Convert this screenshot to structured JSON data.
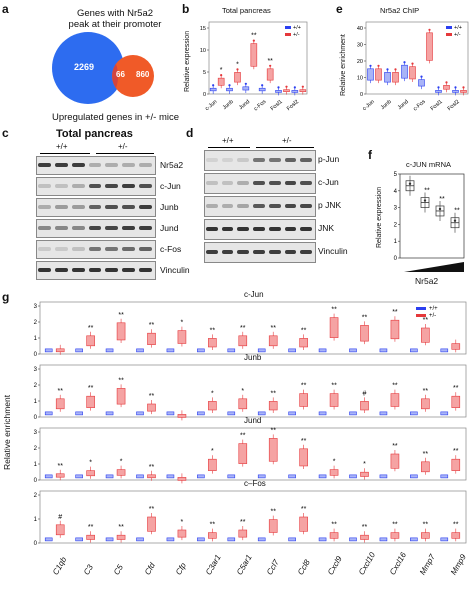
{
  "panel_a": {
    "letter": "a",
    "title": "Genes with Nr5a2\npeak at their promoter",
    "big": "2269",
    "overlap": "66",
    "small": "860",
    "footer": "Upregulated genes in +/- mice",
    "colors": {
      "blue": "#2d6cf0",
      "orange": "#f05a28"
    }
  },
  "panel_b": {
    "letter": "b",
    "title": "Total pancreas",
    "ylabel": "Relative expression",
    "legend": [
      "+/+",
      "+/-"
    ],
    "categories": [
      "c-Jun",
      "Junb",
      "Jund",
      "c-Fos",
      "Fosl1",
      "Fosl2"
    ],
    "yticks": [
      "0",
      "5",
      "10",
      "15"
    ]
  },
  "panel_e": {
    "letter": "e",
    "title": "Nr5a2 ChIP",
    "ylabel": "Relative enrichment",
    "legend": [
      "+/+",
      "+/-"
    ],
    "categories": [
      "c-Jun",
      "Junb",
      "Jund",
      "c-Fos",
      "Fosl1",
      "Fosl2"
    ],
    "yticks": [
      "0",
      "10",
      "20",
      "30",
      "40"
    ]
  },
  "panel_c": {
    "letter": "c",
    "title": "Total pancreas",
    "g1": "+/+",
    "g2": "+/-",
    "rows": [
      "Nr5a2",
      "c-Jun",
      "Junb",
      "Jund",
      "c-Fos",
      "Vinculin"
    ]
  },
  "panel_d": {
    "letter": "d",
    "g1": "+/+",
    "g2": "+/-",
    "rows": [
      "p-Jun",
      "c-Jun",
      "p JNK",
      "JNK",
      "Vinculin"
    ]
  },
  "panel_f": {
    "letter": "f",
    "title": "c-JUN mRNA",
    "ylabel": "Relative expression",
    "yticks": [
      "0",
      "1",
      "2",
      "3",
      "4",
      "5"
    ],
    "xlabel": "Nr5a2",
    "stars": [
      "**",
      "**",
      "**"
    ]
  },
  "panel_g": {
    "letter": "g",
    "ylabel": "Relative enrichment",
    "legend": [
      "+/+",
      "+/-"
    ],
    "genes": [
      "C1qb",
      "C3",
      "C5",
      "Cfd",
      "Cfp",
      "C3ar1",
      "C5ar1",
      "Ccl7",
      "Ccl8",
      "Cxcl9",
      "Cxcl10",
      "Cxcl16",
      "Mmp7",
      "Mmp9"
    ],
    "subpanels": [
      {
        "title": "c-Jun",
        "yticks": [
          "0",
          "1",
          "2",
          "3"
        ],
        "marks": [
          "",
          "**",
          "**",
          "**",
          "*",
          "**",
          "**",
          "**",
          "**",
          "**",
          "**",
          "**",
          "**",
          ""
        ]
      },
      {
        "title": "Junb",
        "yticks": [
          "0",
          "1",
          "2",
          "3"
        ],
        "marks": [
          "**",
          "**",
          "**",
          "**",
          "",
          "*",
          "*",
          "**",
          "**",
          "**",
          "#",
          "**",
          "**",
          "**"
        ]
      },
      {
        "title": "Jund",
        "yticks": [
          "0",
          "1",
          "2",
          "3"
        ],
        "marks": [
          "**",
          "*",
          "*",
          "**",
          "",
          "*",
          "**",
          "**",
          "**",
          "*",
          "*",
          "**",
          "**",
          "**"
        ]
      },
      {
        "title": "c–Fos",
        "yticks": [
          "0",
          "1",
          "2"
        ],
        "marks": [
          "#",
          "**",
          "**",
          "**",
          "*",
          "**",
          "**",
          "**",
          "**",
          "**",
          "**",
          "**",
          "**",
          "**"
        ]
      }
    ]
  }
}
